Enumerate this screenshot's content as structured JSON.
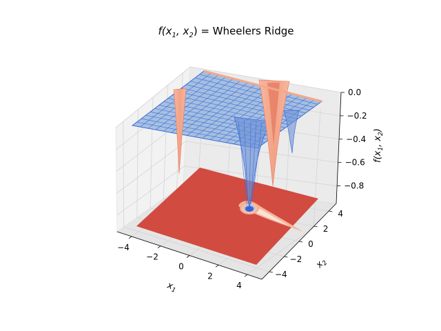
{
  "chart_data": {
    "type": "surface",
    "title": "f(x₁, x₂) =  Wheelers Ridge",
    "title_func": "f(x",
    "title_sub1": "1",
    "title_mid": ", x",
    "title_sub2": "2",
    "title_end": ") =  Wheelers Ridge",
    "xlabel": "x",
    "xlabel_sub": "1",
    "ylabel": "x",
    "ylabel_sub": "2",
    "zlabel": "f(x",
    "zlabel_sub1": "1",
    "zlabel_mid": ", x",
    "zlabel_sub2": "2",
    "zlabel_end": ")",
    "x_ticks": [
      "−4",
      "−2",
      "0",
      "2",
      "4"
    ],
    "x_tick_values": [
      -4,
      -2,
      0,
      2,
      4
    ],
    "y_ticks": [
      "−4",
      "−2",
      "0",
      "2",
      "4"
    ],
    "y_tick_values": [
      -4,
      -2,
      0,
      2,
      4
    ],
    "z_ticks": [
      "0.0",
      "−0.2",
      "−0.4",
      "−0.6",
      "−0.8"
    ],
    "z_tick_values": [
      0.0,
      -0.2,
      -0.4,
      -0.6,
      -0.8
    ],
    "xlim": [
      -5,
      5
    ],
    "ylim": [
      -5,
      5
    ],
    "zlim": [
      -0.95,
      0.0
    ],
    "grid": true,
    "surface_colormap": "coolwarm",
    "contour_offset": -0.95,
    "colors": {
      "surface_face": "#8fb0dc",
      "surface_edge": "#3d6fd8",
      "spike": "#f4a78a",
      "spike_light": "#f6b89e",
      "spike_dark": "#e3775e",
      "contour_base": "#d24b40",
      "contour_low": "#3b62d6",
      "pane": "#f2f2f2",
      "grid": "#d4d4d4"
    }
  }
}
